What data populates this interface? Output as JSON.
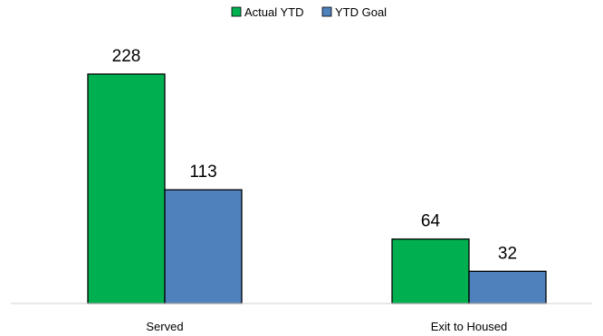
{
  "chart_data": {
    "type": "bar",
    "categories": [
      "Served",
      "Exit to Housed"
    ],
    "series": [
      {
        "name": "Actual YTD",
        "values": [
          228,
          64
        ],
        "color": "#00b050"
      },
      {
        "name": "YTD Goal",
        "values": [
          113,
          32
        ],
        "color": "#4f81bd"
      }
    ],
    "title": "",
    "xlabel": "",
    "ylabel": "",
    "ylim": [
      0,
      228
    ],
    "grid": false,
    "legend_position": "top-center",
    "data_labels": true,
    "bar_outline_color": "#000000"
  }
}
